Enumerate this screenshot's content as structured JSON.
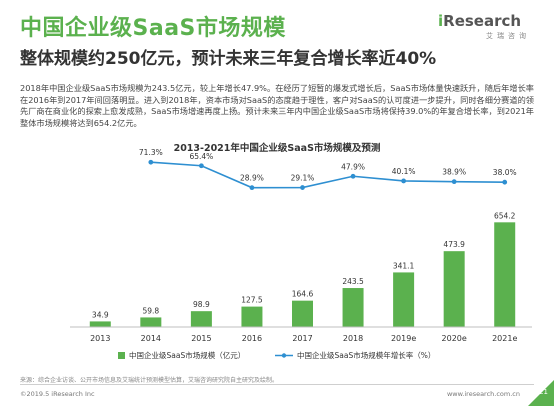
{
  "header": {
    "title": "中国企业级SaaS市场规模",
    "subtitle": "整体规模约250亿元，预计未来三年复合增长率近40%"
  },
  "logo": {
    "brand_prefix": "i",
    "brand_name": "Research",
    "sub": "艾瑞咨询"
  },
  "body_text": "2018年中国企业级SaaS市场规模为243.5亿元，较上年增长47.9%。在经历了短暂的爆发式增长后，SaaS市场体量快速跃升，随后年增长率在2016年到2017年间回落明显。进入到2018年，资本市场对SaaS的态度趋于理性，客户对SaaS的认可度进一步提升，同时各细分赛道的领先厂商在商业化的探索上愈发成熟，SaaS市场增速再度上扬。预计未来三年内中国企业级SaaS市场将保持39.0%的年复合增长率，到2021年整体市场规模将达到654.2亿元。",
  "chart_data": {
    "type": "bar",
    "title": "2013-2021年中国企业级SaaS市场规模及预测",
    "categories": [
      "2013",
      "2014",
      "2015",
      "2016",
      "2017",
      "2018",
      "2019e",
      "2020e",
      "2021e"
    ],
    "series": [
      {
        "name": "中国企业级SaaS市场规模（亿元）",
        "kind": "bar",
        "values": [
          34.9,
          59.8,
          98.9,
          127.5,
          164.6,
          243.5,
          341.1,
          473.9,
          654.2
        ],
        "labels": [
          "34.9",
          "59.8",
          "98.9",
          "127.5",
          "164.6",
          "243.5",
          "341.1",
          "473.9",
          "654.2"
        ]
      },
      {
        "name": "中国企业级SaaS市场规模年增长率（%）",
        "kind": "line",
        "values": [
          null,
          71.3,
          65.4,
          28.9,
          29.1,
          47.9,
          40.1,
          38.9,
          38.0
        ],
        "labels": [
          "",
          "71.3%",
          "65.4%",
          "28.9%",
          "29.1%",
          "47.9%",
          "40.1%",
          "38.9%",
          "38.0%"
        ]
      }
    ],
    "bar_ylim": [
      0,
      700
    ],
    "line_ylim": [
      0,
      100
    ],
    "grid": false,
    "legend_position": "bottom",
    "colors": {
      "bar": "#5bb14e",
      "line": "#2e8fd1",
      "axis": "#bfbfbf"
    }
  },
  "footer": {
    "source": "来源：综合企业访谈、公开市场信息及艾瑞统计预测模型估算，艾瑞咨询研究院自主研究及绘制。",
    "copyright": "©2019.5 iResearch Inc",
    "website": "www.iresearch.com.cn",
    "page": "21"
  }
}
